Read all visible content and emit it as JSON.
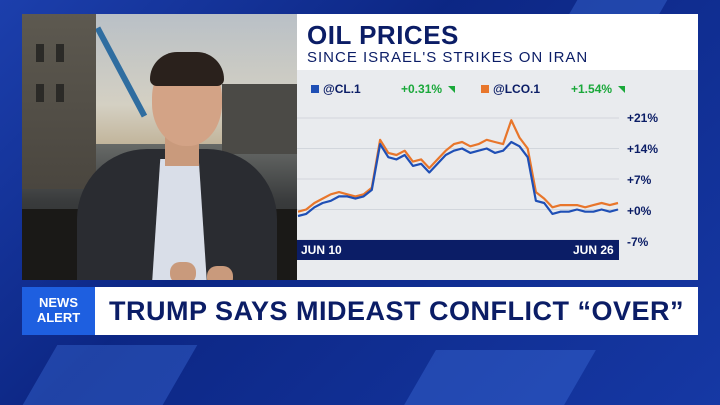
{
  "chart_panel": {
    "title": "OIL PRICES",
    "subtitle": "SINCE ISRAEL'S STRIKES ON IRAN",
    "legend": [
      {
        "symbol": "@CL.1",
        "change": "+0.31%",
        "color": "#1f4fb5"
      },
      {
        "symbol": "@LCO.1",
        "change": "+1.54%",
        "color": "#e8762b"
      }
    ],
    "y_ticks": [
      "+21%",
      "+14%",
      "+7%",
      "+0%",
      "-7%"
    ],
    "x_ticks": [
      "JUN 10",
      "JUN 26"
    ]
  },
  "chart_data": {
    "type": "line",
    "ylim": [
      -7,
      21
    ],
    "y_tick_values": [
      21,
      14,
      7,
      0,
      -7
    ],
    "x_tick_labels": [
      "JUN 10",
      "JUN 26"
    ],
    "series": [
      {
        "name": "@CL.1",
        "color": "#1f4fb5",
        "values": [
          -1.5,
          -1.0,
          0.5,
          1.5,
          2.0,
          3.0,
          3.0,
          2.5,
          3.0,
          4.5,
          15.0,
          12.0,
          11.5,
          12.5,
          10.0,
          10.5,
          8.5,
          10.5,
          12.5,
          13.5,
          14.0,
          13.0,
          13.5,
          14.0,
          13.0,
          13.5,
          15.5,
          14.5,
          12.0,
          2.0,
          1.5,
          -1.0,
          -0.5,
          -0.5,
          0.0,
          -0.5,
          -0.5,
          0.0,
          -0.5,
          0.0
        ]
      },
      {
        "name": "@LCO.1",
        "color": "#e8762b",
        "values": [
          -0.5,
          0.0,
          1.5,
          2.5,
          3.5,
          4.0,
          3.5,
          3.0,
          3.5,
          5.0,
          16.0,
          13.0,
          12.5,
          13.5,
          11.0,
          11.5,
          9.5,
          11.5,
          13.5,
          15.0,
          15.5,
          14.5,
          15.0,
          16.0,
          15.5,
          15.0,
          20.5,
          16.5,
          14.0,
          4.0,
          2.5,
          0.5,
          1.0,
          1.0,
          1.0,
          0.5,
          1.0,
          1.5,
          1.0,
          1.5
        ]
      }
    ]
  },
  "lower_third": {
    "alert_line1": "NEWS",
    "alert_line2": "ALERT",
    "headline": "TRUMP SAYS MIDEAST CONFLICT “OVER”"
  }
}
